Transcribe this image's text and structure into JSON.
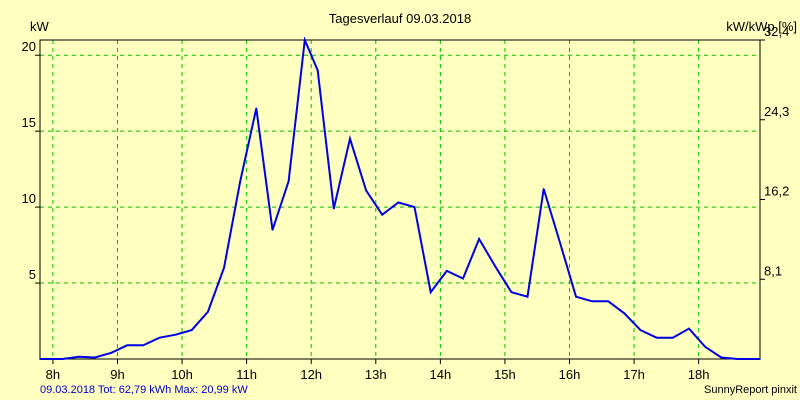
{
  "chart_data": {
    "type": "line",
    "title": "Tagesverlauf 09.03.2018",
    "ylabel_left": "kW",
    "ylabel_right": "kW/kWp [%]",
    "x_unit": "hour",
    "xlim": [
      7.8,
      18.95
    ],
    "ylim": [
      0,
      21.0
    ],
    "x_ticks": [
      8,
      9,
      10,
      11,
      12,
      13,
      14,
      15,
      16,
      17,
      18
    ],
    "x_tick_labels": [
      "8h",
      "9h",
      "10h",
      "11h",
      "12h",
      "13h",
      "14h",
      "15h",
      "16h",
      "17h",
      "18h"
    ],
    "y_ticks_left": [
      5,
      10,
      15,
      20
    ],
    "y_tick_labels_left": [
      "5",
      "10",
      "15",
      "20"
    ],
    "y_ticks_right": [
      5.25,
      10.5,
      15.75,
      21.0
    ],
    "y_tick_labels_right": [
      "8,1",
      "16,2",
      "24,3",
      "32,4"
    ],
    "grid": true,
    "series": [
      {
        "name": "kW",
        "x": [
          7.8,
          8.15,
          8.4,
          8.65,
          8.9,
          9.15,
          9.4,
          9.65,
          9.9,
          10.15,
          10.4,
          10.65,
          10.9,
          11.15,
          11.4,
          11.65,
          11.9,
          12.1,
          12.35,
          12.6,
          12.85,
          13.1,
          13.35,
          13.6,
          13.85,
          14.1,
          14.35,
          14.6,
          14.85,
          15.1,
          15.35,
          15.6,
          15.85,
          16.1,
          16.35,
          16.6,
          16.85,
          17.1,
          17.35,
          17.6,
          17.85,
          18.1,
          18.35,
          18.6,
          18.95
        ],
        "values": [
          0.0,
          0.0,
          0.15,
          0.1,
          0.4,
          0.9,
          0.9,
          1.4,
          1.6,
          1.9,
          3.1,
          6.0,
          11.7,
          16.5,
          8.5,
          11.7,
          21.0,
          19.0,
          9.9,
          14.5,
          11.1,
          9.5,
          10.3,
          10.0,
          4.4,
          5.8,
          5.3,
          7.9,
          6.1,
          4.4,
          4.1,
          11.2,
          7.7,
          4.1,
          3.8,
          3.8,
          3.0,
          1.9,
          1.4,
          1.4,
          2.0,
          0.8,
          0.1,
          0.0,
          0.0
        ],
        "color": "#0000e6"
      }
    ],
    "footer_left": "09.03.2018 Tot: 62,79 kWh Max: 20,99 kW",
    "footer_right": "SunnyReport pinxit"
  },
  "colors": {
    "background": "#ffffc0",
    "grid": "#00c000",
    "line": "#0000e6",
    "footer_left": "#0000d0"
  }
}
